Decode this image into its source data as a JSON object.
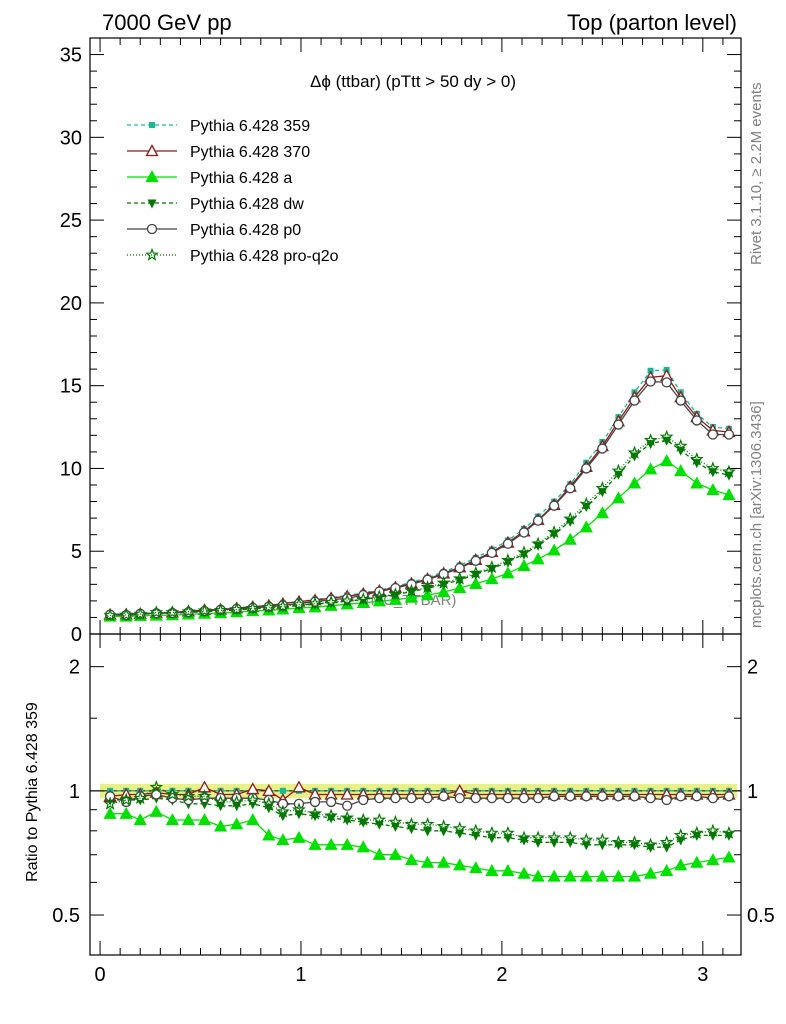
{
  "header": {
    "left": "7000 GeV pp",
    "right": "Top (parton level)"
  },
  "side_labels": {
    "rivet": "Rivet 3.1.10, ≥ 2.2M events",
    "mcplots": "mcplots.cern.ch [arXiv:1306.3436]"
  },
  "chart_data": [
    {
      "type": "line",
      "panel": "main",
      "title": "Δϕ (ttbar) (pTtt > 50 dy > 0)",
      "watermark": "(MC_TTBAR)",
      "xlabel": "",
      "ylabel": "",
      "xlim": [
        -0.05,
        3.19
      ],
      "ylim": [
        0,
        36
      ],
      "x_ticks": [
        "0",
        "1",
        "2",
        "3"
      ],
      "y_ticks": [
        "0",
        "5",
        "10",
        "15",
        "20",
        "25",
        "30",
        "35"
      ],
      "legend_position": "top-left",
      "x": [
        0.05,
        0.13,
        0.2,
        0.28,
        0.36,
        0.44,
        0.52,
        0.6,
        0.68,
        0.76,
        0.84,
        0.91,
        0.99,
        1.07,
        1.15,
        1.23,
        1.31,
        1.39,
        1.47,
        1.55,
        1.63,
        1.71,
        1.79,
        1.87,
        1.95,
        2.03,
        2.11,
        2.18,
        2.26,
        2.34,
        2.42,
        2.5,
        2.58,
        2.66,
        2.74,
        2.82,
        2.89,
        2.97,
        3.05,
        3.13
      ],
      "series": [
        {
          "name": "Pythia 6.428 359",
          "color": "#1bb892",
          "dash": "4,3",
          "marker": "square",
          "values": [
            1.2,
            1.21,
            1.25,
            1.27,
            1.32,
            1.39,
            1.45,
            1.52,
            1.58,
            1.64,
            1.74,
            1.86,
            1.97,
            2.08,
            2.2,
            2.33,
            2.48,
            2.66,
            2.87,
            3.13,
            3.41,
            3.75,
            4.14,
            4.6,
            5.1,
            5.65,
            6.35,
            7.1,
            8.0,
            9.05,
            10.35,
            11.6,
            13.1,
            14.6,
            15.9,
            15.95,
            14.6,
            13.3,
            12.5,
            12.4
          ]
        },
        {
          "name": "Pythia 6.428 370",
          "color": "#8b1a1a",
          "dash": "",
          "marker": "triangle-open",
          "values": [
            1.17,
            1.19,
            1.22,
            1.26,
            1.3,
            1.37,
            1.45,
            1.48,
            1.56,
            1.64,
            1.72,
            1.83,
            1.96,
            2.04,
            2.17,
            2.28,
            2.43,
            2.61,
            2.82,
            3.05,
            3.32,
            3.66,
            4.03,
            4.48,
            4.96,
            5.52,
            6.2,
            6.9,
            7.8,
            8.9,
            10.1,
            11.35,
            12.85,
            14.3,
            15.5,
            15.6,
            14.3,
            13.1,
            12.3,
            12.2
          ]
        },
        {
          "name": "Pythia 6.428 a",
          "color": "#00e000",
          "dash": "",
          "marker": "triangle",
          "values": [
            1.06,
            1.06,
            1.1,
            1.12,
            1.14,
            1.19,
            1.23,
            1.27,
            1.32,
            1.39,
            1.43,
            1.49,
            1.57,
            1.62,
            1.71,
            1.8,
            1.88,
            1.98,
            2.07,
            2.2,
            2.35,
            2.53,
            2.78,
            3.03,
            3.32,
            3.67,
            4.12,
            4.52,
            5.05,
            5.7,
            6.45,
            7.3,
            8.2,
            9.1,
            9.95,
            10.45,
            9.85,
            9.1,
            8.7,
            8.4
          ]
        },
        {
          "name": "Pythia 6.428 dw",
          "color": "#007800",
          "dash": "4,3",
          "marker": "triangle-down",
          "values": [
            1.14,
            1.14,
            1.19,
            1.22,
            1.25,
            1.3,
            1.35,
            1.4,
            1.45,
            1.52,
            1.59,
            1.62,
            1.74,
            1.8,
            1.89,
            1.98,
            2.08,
            2.22,
            2.37,
            2.56,
            2.76,
            3.0,
            3.26,
            3.6,
            3.95,
            4.35,
            4.82,
            5.35,
            6.05,
            6.8,
            7.7,
            8.6,
            9.65,
            10.75,
            11.5,
            11.7,
            11.1,
            10.35,
            9.8,
            9.6
          ]
        },
        {
          "name": "Pythia 6.428 p0",
          "color": "#444444",
          "dash": "",
          "marker": "circle-open",
          "values": [
            1.17,
            1.14,
            1.22,
            1.25,
            1.27,
            1.32,
            1.39,
            1.46,
            1.52,
            1.58,
            1.65,
            1.73,
            1.84,
            1.95,
            2.07,
            2.15,
            2.35,
            2.56,
            2.77,
            3.0,
            3.28,
            3.62,
            3.98,
            4.42,
            4.9,
            5.45,
            6.13,
            6.85,
            7.75,
            8.8,
            10.0,
            11.2,
            12.65,
            14.1,
            15.25,
            15.2,
            14.1,
            12.9,
            12.05,
            12.05
          ]
        },
        {
          "name": "Pythia 6.428 pro-q2o",
          "color": "#007800",
          "dash": "1,2",
          "marker": "star-open",
          "values": [
            1.12,
            1.15,
            1.2,
            1.3,
            1.3,
            1.35,
            1.4,
            1.43,
            1.48,
            1.55,
            1.62,
            1.66,
            1.78,
            1.83,
            1.91,
            2.0,
            2.1,
            2.26,
            2.4,
            2.6,
            2.82,
            3.08,
            3.34,
            3.68,
            4.03,
            4.45,
            4.92,
            5.45,
            6.15,
            6.95,
            7.85,
            8.8,
            9.85,
            10.95,
            11.7,
            11.9,
            11.35,
            10.55,
            10.0,
            9.8
          ]
        }
      ]
    },
    {
      "type": "line",
      "panel": "ratio",
      "ylabel": "Ratio to Pythia 6.428 359",
      "xlim": [
        -0.05,
        3.19
      ],
      "ylim": [
        0.4,
        2.4
      ],
      "log_y": true,
      "x_ticks": [
        "0",
        "1",
        "2",
        "3"
      ],
      "y_ticks": [
        "0.5",
        "1",
        "2"
      ],
      "band": {
        "lo": 0.96,
        "hi": 1.04,
        "color": "#e8f08a"
      },
      "x": [
        0.05,
        0.13,
        0.2,
        0.28,
        0.36,
        0.44,
        0.52,
        0.6,
        0.68,
        0.76,
        0.84,
        0.91,
        0.99,
        1.07,
        1.15,
        1.23,
        1.31,
        1.39,
        1.47,
        1.55,
        1.63,
        1.71,
        1.79,
        1.87,
        1.95,
        2.03,
        2.11,
        2.18,
        2.26,
        2.34,
        2.42,
        2.5,
        2.58,
        2.66,
        2.74,
        2.82,
        2.89,
        2.97,
        3.05,
        3.13
      ],
      "series": [
        {
          "name": "Pythia 6.428 359",
          "color": "#1bb892",
          "dash": "4,3",
          "marker": "square",
          "values": [
            1,
            1,
            1,
            1,
            1,
            1,
            1,
            1,
            1,
            1,
            1,
            1,
            1,
            1,
            1,
            1,
            1,
            1,
            1,
            1,
            1,
            1,
            1,
            1,
            1,
            1,
            1,
            1,
            1,
            1,
            1,
            1,
            1,
            1,
            1,
            1,
            1,
            1,
            1,
            1
          ]
        },
        {
          "name": "Pythia 6.428 370",
          "color": "#8b1a1a",
          "dash": "",
          "marker": "triangle-open",
          "values": [
            0.97,
            0.98,
            0.98,
            0.99,
            0.98,
            0.98,
            1.02,
            0.98,
            0.98,
            1.01,
            1.0,
            0.95,
            1.02,
            0.98,
            0.98,
            0.98,
            0.98,
            0.98,
            0.98,
            0.98,
            0.98,
            0.98,
            1.0,
            0.98,
            0.98,
            0.98,
            0.98,
            0.98,
            0.98,
            0.98,
            0.98,
            0.98,
            0.98,
            0.98,
            0.98,
            0.98,
            0.98,
            0.98,
            0.98,
            0.98
          ]
        },
        {
          "name": "Pythia 6.428 a",
          "color": "#00e000",
          "dash": "",
          "marker": "triangle",
          "values": [
            0.88,
            0.88,
            0.85,
            0.89,
            0.85,
            0.85,
            0.85,
            0.82,
            0.83,
            0.85,
            0.78,
            0.76,
            0.77,
            0.74,
            0.74,
            0.74,
            0.73,
            0.7,
            0.7,
            0.68,
            0.67,
            0.67,
            0.66,
            0.65,
            0.64,
            0.64,
            0.63,
            0.62,
            0.62,
            0.62,
            0.62,
            0.62,
            0.62,
            0.62,
            0.63,
            0.64,
            0.66,
            0.67,
            0.68,
            0.69
          ]
        },
        {
          "name": "Pythia 6.428 dw",
          "color": "#007800",
          "dash": "4,3",
          "marker": "triangle-down",
          "values": [
            0.95,
            0.95,
            0.95,
            0.96,
            0.95,
            0.93,
            0.93,
            0.92,
            0.92,
            0.93,
            0.91,
            0.87,
            0.88,
            0.87,
            0.86,
            0.85,
            0.84,
            0.83,
            0.82,
            0.81,
            0.8,
            0.8,
            0.79,
            0.78,
            0.77,
            0.77,
            0.76,
            0.75,
            0.75,
            0.75,
            0.74,
            0.74,
            0.74,
            0.74,
            0.73,
            0.73,
            0.76,
            0.78,
            0.78,
            0.78
          ]
        },
        {
          "name": "Pythia 6.428 p0",
          "color": "#444444",
          "dash": "",
          "marker": "circle-open",
          "values": [
            0.97,
            0.94,
            0.97,
            0.98,
            0.96,
            0.95,
            0.96,
            0.96,
            0.96,
            0.96,
            0.95,
            0.93,
            0.93,
            0.94,
            0.94,
            0.92,
            0.95,
            0.96,
            0.96,
            0.96,
            0.96,
            0.97,
            0.96,
            0.96,
            0.96,
            0.96,
            0.96,
            0.96,
            0.97,
            0.97,
            0.97,
            0.97,
            0.97,
            0.97,
            0.96,
            0.95,
            0.97,
            0.97,
            0.96,
            0.97
          ]
        },
        {
          "name": "Pythia 6.428 pro-q2o",
          "color": "#007800",
          "dash": "1,2",
          "marker": "star-open",
          "values": [
            0.93,
            0.95,
            0.96,
            1.02,
            0.98,
            0.97,
            0.97,
            0.94,
            0.94,
            0.95,
            0.93,
            0.89,
            0.9,
            0.88,
            0.87,
            0.86,
            0.85,
            0.85,
            0.84,
            0.83,
            0.83,
            0.82,
            0.81,
            0.8,
            0.79,
            0.79,
            0.77,
            0.77,
            0.77,
            0.77,
            0.76,
            0.76,
            0.75,
            0.75,
            0.74,
            0.75,
            0.78,
            0.79,
            0.8,
            0.79
          ]
        }
      ]
    }
  ]
}
